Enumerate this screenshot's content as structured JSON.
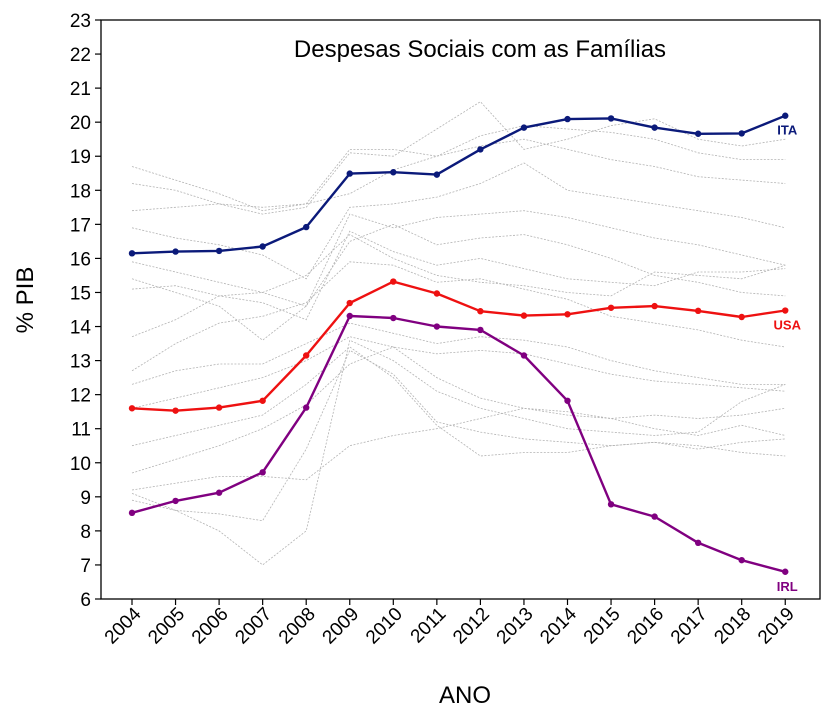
{
  "chart_data": {
    "type": "line",
    "title": "Despesas Sociais com as Famílias",
    "xlabel": "ANO",
    "ylabel": "% PIB",
    "ylim": [
      6,
      23
    ],
    "yticks": [
      6,
      7,
      8,
      9,
      10,
      11,
      12,
      13,
      14,
      15,
      16,
      17,
      18,
      19,
      20,
      21,
      22,
      23
    ],
    "categories": [
      "2004",
      "2005",
      "2006",
      "2007",
      "2008",
      "2009",
      "2010",
      "2011",
      "2012",
      "2013",
      "2014",
      "2015",
      "2016",
      "2017",
      "2018",
      "2019"
    ],
    "grid": false,
    "series": [
      {
        "name": "ITA",
        "color": "#0b1a7a",
        "highlight": true,
        "values": [
          16.15,
          16.2,
          16.22,
          16.35,
          16.92,
          18.49,
          18.53,
          18.46,
          19.2,
          19.84,
          20.09,
          20.11,
          19.84,
          19.66,
          19.67,
          20.19
        ]
      },
      {
        "name": "USA",
        "color": "#ee1111",
        "highlight": true,
        "values": [
          11.6,
          11.53,
          11.62,
          11.82,
          13.15,
          14.69,
          15.32,
          14.97,
          14.45,
          14.32,
          14.36,
          14.55,
          14.6,
          14.46,
          14.28,
          14.47
        ]
      },
      {
        "name": "IRL",
        "color": "#800080",
        "highlight": true,
        "values": [
          8.53,
          8.88,
          9.12,
          9.72,
          11.62,
          14.31,
          14.25,
          14.0,
          13.9,
          13.15,
          11.82,
          8.78,
          8.42,
          7.65,
          7.14,
          6.8
        ]
      }
    ],
    "background_series": [
      {
        "values": [
          18.7,
          18.3,
          17.9,
          17.4,
          17.6,
          19.2,
          19.2,
          19.0,
          19.6,
          19.9,
          19.8,
          19.7,
          19.5,
          19.1,
          18.9,
          18.9
        ]
      },
      {
        "values": [
          18.2,
          18.0,
          17.6,
          17.3,
          17.5,
          19.1,
          19.0,
          19.8,
          20.6,
          19.2,
          19.5,
          19.9,
          20.1,
          19.5,
          19.3,
          19.5
        ]
      },
      {
        "values": [
          17.4,
          17.5,
          17.6,
          17.5,
          17.6,
          17.9,
          18.6,
          19.0,
          19.3,
          19.5,
          19.2,
          18.9,
          18.7,
          18.4,
          18.3,
          18.2
        ]
      },
      {
        "values": [
          16.9,
          16.6,
          16.4,
          16.1,
          15.4,
          17.5,
          17.6,
          17.8,
          18.2,
          18.8,
          18.0,
          17.8,
          17.6,
          17.4,
          17.2,
          16.9
        ]
      },
      {
        "values": [
          15.9,
          15.6,
          15.3,
          15.0,
          14.6,
          17.3,
          16.9,
          17.2,
          17.3,
          17.4,
          17.2,
          16.9,
          16.6,
          16.4,
          16.1,
          15.8
        ]
      },
      {
        "values": [
          15.4,
          15.0,
          14.6,
          13.6,
          14.6,
          16.5,
          17.0,
          16.4,
          16.6,
          16.7,
          16.4,
          16.0,
          15.5,
          15.3,
          15.0,
          14.9
        ]
      },
      {
        "values": [
          15.1,
          15.2,
          14.9,
          14.7,
          14.2,
          16.8,
          16.2,
          15.8,
          16.0,
          15.7,
          15.4,
          15.3,
          15.2,
          15.6,
          15.6,
          15.7
        ]
      },
      {
        "values": [
          13.7,
          14.2,
          14.9,
          15.0,
          15.5,
          16.7,
          16.0,
          15.5,
          15.3,
          15.2,
          15.0,
          14.9,
          15.6,
          15.5,
          15.4,
          15.8
        ]
      },
      {
        "values": [
          12.7,
          13.5,
          14.1,
          14.3,
          14.7,
          15.9,
          15.8,
          15.3,
          15.4,
          15.1,
          14.8,
          14.3,
          14.1,
          13.9,
          13.6,
          13.4
        ]
      },
      {
        "values": [
          12.3,
          12.7,
          12.9,
          12.9,
          13.5,
          14.1,
          13.8,
          13.5,
          13.7,
          13.6,
          13.4,
          13.0,
          12.7,
          12.5,
          12.3,
          12.3
        ]
      },
      {
        "values": [
          11.6,
          11.9,
          12.2,
          12.5,
          13.0,
          13.7,
          13.4,
          13.2,
          13.3,
          13.2,
          12.9,
          12.6,
          12.4,
          12.3,
          12.2,
          12.1
        ]
      },
      {
        "values": [
          10.5,
          10.8,
          11.1,
          11.4,
          12.3,
          13.4,
          12.5,
          11.1,
          10.2,
          10.3,
          10.3,
          10.5,
          10.6,
          10.5,
          10.3,
          10.2
        ]
      },
      {
        "values": [
          9.7,
          10.1,
          10.5,
          11.0,
          11.7,
          12.9,
          13.4,
          12.5,
          11.9,
          11.6,
          11.4,
          11.3,
          11.4,
          11.3,
          11.4,
          11.6
        ]
      },
      {
        "values": [
          9.2,
          9.4,
          9.6,
          9.6,
          9.5,
          10.5,
          10.8,
          11.0,
          11.3,
          11.6,
          11.5,
          11.3,
          11.0,
          10.8,
          11.1,
          10.8
        ]
      },
      {
        "values": [
          9.1,
          8.6,
          8.0,
          7.0,
          8.0,
          13.6,
          13.0,
          12.1,
          11.6,
          11.3,
          11.0,
          10.9,
          10.8,
          10.9,
          11.8,
          12.3
        ]
      },
      {
        "values": [
          8.9,
          8.6,
          8.5,
          8.3,
          10.4,
          13.3,
          12.6,
          11.2,
          10.9,
          10.7,
          10.6,
          10.5,
          10.6,
          10.4,
          10.6,
          10.7
        ]
      }
    ]
  }
}
